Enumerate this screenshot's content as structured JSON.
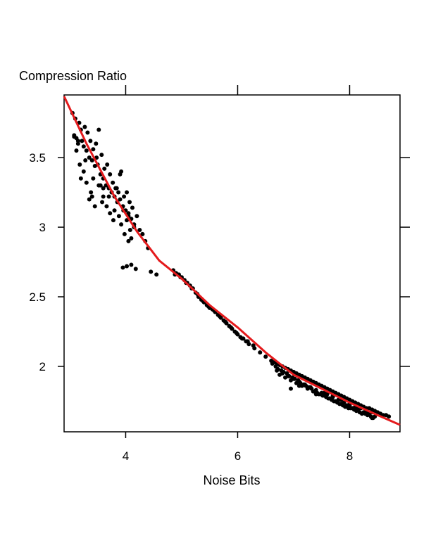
{
  "chart_data": {
    "type": "scatter",
    "title": "Compression Ratio",
    "xlabel": "Noise Bits",
    "ylabel": "",
    "xlim": [
      2.9,
      8.9
    ],
    "ylim": [
      1.53,
      3.95
    ],
    "xticks": [
      4,
      6,
      8
    ],
    "xtick_labels": [
      "4",
      "6",
      "8"
    ],
    "yticks": [
      2,
      2.5,
      3,
      3.5
    ],
    "ytick_labels": [
      "2",
      "2.5",
      "3",
      "3.5"
    ],
    "grid": false,
    "legend": "none",
    "series": [
      {
        "type": "scatter",
        "color": "#000000",
        "x": [
          3.05,
          3.08,
          3.1,
          3.12,
          3.15,
          3.17,
          3.2,
          3.22,
          3.25,
          3.27,
          3.3,
          3.32,
          3.35,
          3.37,
          3.4,
          3.42,
          3.45,
          3.47,
          3.5,
          3.52,
          3.55,
          3.57,
          3.6,
          3.62,
          3.65,
          3.67,
          3.7,
          3.72,
          3.75,
          3.77,
          3.8,
          3.82,
          3.85,
          3.87,
          3.9,
          3.92,
          3.95,
          3.97,
          4.0,
          4.02,
          4.05,
          4.07,
          4.1,
          4.12,
          4.15,
          4.2,
          4.25,
          4.3,
          4.35,
          4.4,
          3.08,
          3.12,
          3.18,
          3.25,
          3.3,
          3.38,
          3.42,
          3.48,
          3.55,
          3.6,
          3.66,
          3.72,
          3.78,
          3.84,
          3.9,
          3.96,
          4.02,
          4.08,
          3.2,
          3.35,
          3.45,
          3.52,
          3.6,
          3.7,
          3.8,
          3.88,
          3.92,
          3.98,
          4.05,
          4.1,
          3.15,
          3.28,
          3.4,
          3.58,
          3.75,
          3.95,
          4.05,
          4.15,
          4.3,
          3.95,
          4.02,
          4.1,
          4.18,
          4.45,
          4.55,
          4.85,
          4.9,
          4.95,
          5.0,
          5.05,
          5.1,
          5.15,
          5.2,
          5.25,
          5.3,
          5.35,
          5.4,
          5.45,
          5.5,
          5.55,
          5.6,
          5.65,
          5.7,
          5.75,
          5.8,
          5.85,
          5.9,
          5.95,
          6.0,
          6.05,
          6.1,
          6.15,
          6.2,
          6.3,
          6.4,
          6.5,
          4.88,
          4.98,
          5.08,
          5.18,
          5.28,
          5.38,
          5.48,
          5.58,
          5.68,
          5.78,
          5.88,
          5.98,
          6.08,
          6.18,
          6.28,
          6.6,
          6.65,
          6.7,
          6.75,
          6.8,
          6.85,
          6.9,
          6.95,
          7.0,
          7.05,
          7.1,
          7.15,
          7.2,
          7.25,
          7.3,
          7.35,
          7.4,
          7.45,
          7.5,
          7.55,
          7.6,
          7.65,
          7.7,
          7.75,
          7.8,
          7.85,
          7.9,
          7.95,
          8.0,
          8.05,
          8.1,
          8.15,
          8.2,
          8.25,
          8.3,
          8.35,
          8.4,
          8.45,
          8.5,
          8.55,
          8.6,
          8.65,
          8.7,
          6.62,
          6.68,
          6.72,
          6.78,
          6.82,
          6.88,
          6.92,
          6.98,
          7.02,
          7.08,
          7.12,
          7.18,
          7.22,
          7.28,
          7.32,
          7.38,
          7.42,
          7.48,
          7.52,
          7.58,
          7.62,
          7.68,
          7.72,
          7.78,
          7.82,
          7.88,
          7.92,
          7.98,
          8.02,
          8.08,
          8.12,
          8.18,
          8.22,
          8.28,
          8.32,
          8.38,
          8.42,
          6.7,
          6.8,
          6.9,
          7.0,
          7.1,
          7.2,
          7.3,
          7.4,
          7.5,
          7.6,
          7.7,
          7.8,
          7.9,
          8.0,
          8.1,
          8.2,
          8.3,
          8.4,
          6.75,
          6.85,
          6.95,
          7.05,
          7.15,
          7.25,
          7.35,
          7.45,
          7.55,
          7.65,
          7.75,
          7.85,
          7.95,
          8.05,
          8.15,
          8.25,
          8.35,
          8.45,
          6.95,
          7.1,
          7.25,
          7.4,
          7.55,
          7.7,
          7.85,
          8.0,
          8.15,
          8.3,
          8.4
        ],
        "y": [
          3.82,
          3.66,
          3.78,
          3.64,
          3.6,
          3.75,
          3.7,
          3.62,
          3.58,
          3.72,
          3.55,
          3.68,
          3.5,
          3.62,
          3.48,
          3.56,
          3.44,
          3.6,
          3.45,
          3.7,
          3.38,
          3.52,
          3.35,
          3.42,
          3.3,
          3.45,
          3.28,
          3.38,
          3.25,
          3.32,
          3.22,
          3.28,
          3.18,
          3.25,
          3.2,
          3.4,
          3.15,
          3.22,
          3.12,
          3.25,
          3.1,
          3.18,
          3.06,
          3.14,
          3.02,
          3.08,
          2.98,
          2.95,
          2.9,
          2.85,
          3.65,
          3.55,
          3.45,
          3.4,
          3.32,
          3.25,
          3.35,
          3.5,
          3.3,
          3.22,
          3.15,
          3.1,
          3.05,
          3.28,
          3.38,
          3.12,
          3.05,
          2.98,
          3.35,
          3.2,
          3.15,
          3.3,
          3.28,
          3.22,
          3.12,
          3.08,
          3.02,
          2.95,
          2.9,
          2.92,
          3.62,
          3.48,
          3.22,
          3.18,
          3.25,
          3.15,
          3.08,
          3.0,
          2.95,
          2.71,
          2.72,
          2.73,
          2.7,
          2.68,
          2.66,
          2.69,
          2.67,
          2.66,
          2.64,
          2.62,
          2.6,
          2.58,
          2.56,
          2.53,
          2.5,
          2.48,
          2.46,
          2.44,
          2.42,
          2.41,
          2.39,
          2.37,
          2.35,
          2.33,
          2.31,
          2.29,
          2.27,
          2.25,
          2.23,
          2.21,
          2.2,
          2.18,
          2.16,
          2.13,
          2.1,
          2.07,
          2.66,
          2.64,
          2.6,
          2.56,
          2.52,
          2.47,
          2.43,
          2.4,
          2.36,
          2.32,
          2.28,
          2.24,
          2.2,
          2.18,
          2.15,
          2.04,
          2.03,
          2.02,
          2.01,
          2.0,
          1.99,
          1.98,
          1.97,
          1.96,
          1.95,
          1.94,
          1.93,
          1.92,
          1.91,
          1.9,
          1.89,
          1.88,
          1.87,
          1.86,
          1.85,
          1.84,
          1.83,
          1.82,
          1.81,
          1.8,
          1.79,
          1.78,
          1.77,
          1.76,
          1.75,
          1.74,
          1.73,
          1.72,
          1.71,
          1.7,
          1.7,
          1.69,
          1.68,
          1.67,
          1.66,
          1.65,
          1.65,
          1.64,
          2.02,
          2.0,
          1.98,
          1.97,
          1.96,
          1.95,
          1.93,
          1.92,
          1.91,
          1.9,
          1.88,
          1.87,
          1.86,
          1.85,
          1.84,
          1.82,
          1.81,
          1.8,
          1.79,
          1.78,
          1.77,
          1.76,
          1.75,
          1.74,
          1.73,
          1.72,
          1.71,
          1.7,
          1.7,
          1.69,
          1.68,
          1.67,
          1.66,
          1.66,
          1.65,
          1.64,
          1.63,
          1.97,
          1.95,
          1.93,
          1.91,
          1.89,
          1.87,
          1.85,
          1.83,
          1.81,
          1.8,
          1.78,
          1.76,
          1.74,
          1.73,
          1.71,
          1.7,
          1.68,
          1.67,
          1.94,
          1.92,
          1.9,
          1.88,
          1.86,
          1.84,
          1.82,
          1.8,
          1.79,
          1.77,
          1.75,
          1.73,
          1.72,
          1.7,
          1.69,
          1.67,
          1.66,
          1.64,
          1.84,
          1.86,
          1.85,
          1.8,
          1.81,
          1.79,
          1.76,
          1.72,
          1.7,
          1.67,
          1.63
        ]
      },
      {
        "type": "line",
        "color": "#e41a1c",
        "x": [
          2.9,
          3.3,
          3.8,
          4.2,
          4.6,
          5.0,
          5.5,
          6.0,
          6.5,
          7.0,
          7.5,
          8.0,
          8.5,
          8.9
        ],
        "y": [
          3.94,
          3.6,
          3.22,
          2.97,
          2.76,
          2.63,
          2.44,
          2.28,
          2.1,
          1.94,
          1.84,
          1.74,
          1.65,
          1.58
        ]
      }
    ]
  }
}
